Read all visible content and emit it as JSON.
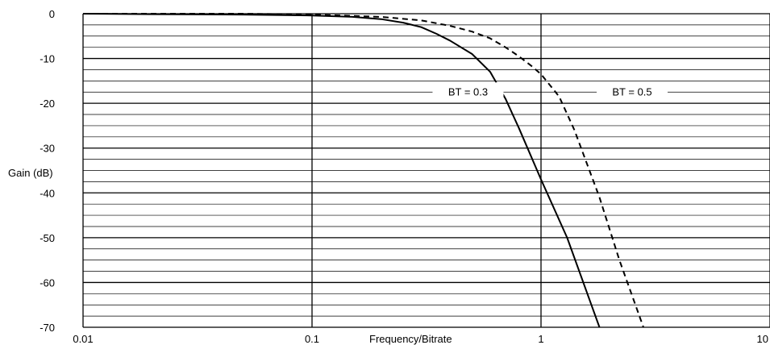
{
  "chart_data": {
    "type": "line",
    "title": "",
    "xlabel": "Frequency/Bitrate",
    "ylabel": "Gain (dB)",
    "x_scale": "log",
    "xlim": [
      0.01,
      10
    ],
    "ylim": [
      -70,
      0
    ],
    "x_ticks": [
      0.01,
      0.1,
      1,
      10
    ],
    "x_tick_labels": [
      "0.01",
      "0.1",
      "1",
      "10"
    ],
    "y_ticks": [
      0,
      -10,
      -20,
      -30,
      -40,
      -50,
      -60,
      -70
    ],
    "y_tick_labels": [
      "0",
      "-10",
      "-20",
      "-30",
      "-40",
      "-50",
      "-60",
      "-70"
    ],
    "grid": true,
    "series": [
      {
        "name": "BT = 0.3",
        "style": "solid",
        "x": [
          0.01,
          0.02,
          0.05,
          0.1,
          0.15,
          0.2,
          0.25,
          0.3,
          0.35,
          0.4,
          0.5,
          0.6,
          0.7,
          0.8,
          1.0,
          1.3,
          1.8
        ],
        "y": [
          0,
          -0.1,
          -0.2,
          -0.4,
          -0.7,
          -1.2,
          -2.0,
          -3.0,
          -4.5,
          -6.0,
          -9.0,
          -13.0,
          -19.0,
          -25.5,
          -37.0,
          -50.0,
          -70.0
        ]
      },
      {
        "name": "BT = 0.5",
        "style": "dashed",
        "x": [
          0.01,
          0.02,
          0.05,
          0.1,
          0.2,
          0.3,
          0.4,
          0.5,
          0.6,
          0.7,
          0.8,
          0.9,
          1.0,
          1.2,
          1.4,
          1.6,
          1.8,
          2.2,
          2.8
        ],
        "y": [
          0,
          0,
          0,
          -0.2,
          -0.7,
          -1.5,
          -2.7,
          -4.0,
          -5.5,
          -7.5,
          -9.5,
          -11.5,
          -13.5,
          -18.5,
          -26.0,
          -34.0,
          -41.0,
          -55.0,
          -70.0
        ]
      }
    ],
    "annotations": [
      {
        "text": "BT = 0.3",
        "x": 0.48,
        "y": -17.5
      },
      {
        "text": "BT = 0.5",
        "x": 2.5,
        "y": -17.5
      }
    ]
  }
}
